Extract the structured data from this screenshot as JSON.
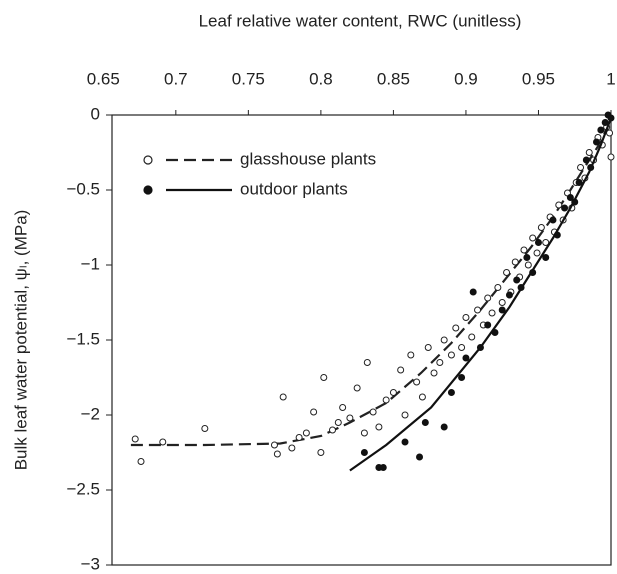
{
  "chart_data": {
    "type": "scatter",
    "xlabel": "Leaf relative water content, RWC (unitless)",
    "ylabel": "Bulk leaf water potential, ψₗ, (MPa)",
    "xlim": [
      0.656,
      1.0
    ],
    "xticks": [
      0.65,
      0.7,
      0.75,
      0.8,
      0.85,
      0.9,
      0.95,
      1
    ],
    "ylim": [
      -3,
      0
    ],
    "yticks": [
      0,
      {
        "value": -0.5,
        "label": "−0.5"
      },
      {
        "value": -1,
        "label": "−1"
      },
      {
        "value": -1.5,
        "label": "−1.5"
      },
      {
        "value": -2,
        "label": "−2"
      },
      {
        "value": -2.5,
        "label": "−2.5"
      },
      {
        "value": -3,
        "label": "−3"
      }
    ],
    "x_axis_position": "top",
    "legend": "upper left",
    "series": [
      {
        "name": "glasshouse plants",
        "color": "#222222",
        "marker": "open",
        "line": "dashed",
        "x": [
          0.672,
          0.676,
          0.691,
          0.72,
          0.768,
          0.77,
          0.774,
          0.78,
          0.785,
          0.79,
          0.795,
          0.8,
          0.802,
          0.808,
          0.812,
          0.815,
          0.82,
          0.825,
          0.83,
          0.832,
          0.836,
          0.84,
          0.845,
          0.85,
          0.855,
          0.858,
          0.862,
          0.866,
          0.87,
          0.874,
          0.878,
          0.882,
          0.885,
          0.89,
          0.893,
          0.897,
          0.9,
          0.904,
          0.908,
          0.912,
          0.915,
          0.918,
          0.922,
          0.925,
          0.928,
          0.931,
          0.934,
          0.937,
          0.94,
          0.943,
          0.946,
          0.949,
          0.952,
          0.955,
          0.958,
          0.961,
          0.964,
          0.967,
          0.97,
          0.973,
          0.976,
          0.979,
          0.982,
          0.985,
          0.988,
          0.991,
          0.994,
          0.997,
          1.0,
          0.999
        ],
        "values": [
          -2.16,
          -2.31,
          -2.18,
          -2.09,
          -2.2,
          -2.26,
          -1.88,
          -2.22,
          -2.15,
          -2.12,
          -1.98,
          -2.25,
          -1.75,
          -2.1,
          -2.05,
          -1.95,
          -2.02,
          -1.82,
          -2.12,
          -1.65,
          -1.98,
          -2.08,
          -1.9,
          -1.85,
          -1.7,
          -2.0,
          -1.6,
          -1.78,
          -1.88,
          -1.55,
          -1.72,
          -1.65,
          -1.5,
          -1.6,
          -1.42,
          -1.55,
          -1.35,
          -1.48,
          -1.3,
          -1.4,
          -1.22,
          -1.32,
          -1.15,
          -1.25,
          -1.05,
          -1.18,
          -0.98,
          -1.08,
          -0.9,
          -1.0,
          -0.82,
          -0.92,
          -0.75,
          -0.85,
          -0.68,
          -0.78,
          -0.6,
          -0.7,
          -0.52,
          -0.62,
          -0.45,
          -0.35,
          -0.42,
          -0.25,
          -0.3,
          -0.15,
          -0.2,
          -0.08,
          -0.28,
          -0.12
        ],
        "fit_x": [
          0.669,
          0.72,
          0.772,
          0.8,
          0.82,
          0.845,
          0.869,
          0.89,
          0.91,
          0.93,
          0.945,
          0.96,
          0.972,
          0.985,
          0.993,
          1.0
        ],
        "fit_y": [
          -2.2,
          -2.2,
          -2.19,
          -2.14,
          -2.05,
          -1.92,
          -1.72,
          -1.52,
          -1.3,
          -1.06,
          -0.88,
          -0.68,
          -0.5,
          -0.3,
          -0.18,
          -0.02
        ]
      },
      {
        "name": "outdoor plants",
        "color": "#111111",
        "marker": "filled",
        "line": "solid",
        "x": [
          0.83,
          0.84,
          0.843,
          0.858,
          0.868,
          0.872,
          0.885,
          0.89,
          0.897,
          0.9,
          0.905,
          0.91,
          0.915,
          0.92,
          0.925,
          0.93,
          0.935,
          0.938,
          0.942,
          0.946,
          0.95,
          0.955,
          0.96,
          0.963,
          0.968,
          0.972,
          0.975,
          0.978,
          0.983,
          0.986,
          0.99,
          0.993,
          0.996,
          0.998,
          1.0
        ],
        "values": [
          -2.25,
          -2.35,
          -2.35,
          -2.18,
          -2.28,
          -2.05,
          -2.08,
          -1.85,
          -1.75,
          -1.62,
          -1.18,
          -1.55,
          -1.4,
          -1.45,
          -1.3,
          -1.2,
          -1.1,
          -1.15,
          -0.95,
          -1.05,
          -0.85,
          -0.95,
          -0.7,
          -0.8,
          -0.62,
          -0.55,
          -0.58,
          -0.45,
          -0.3,
          -0.35,
          -0.18,
          -0.1,
          -0.05,
          0.0,
          -0.02
        ],
        "fit_x": [
          0.82,
          0.845,
          0.876,
          0.91,
          0.93,
          0.945,
          0.96,
          0.972,
          0.985,
          0.993,
          1.0
        ],
        "fit_y": [
          -2.37,
          -2.2,
          -1.95,
          -1.55,
          -1.28,
          -1.05,
          -0.82,
          -0.62,
          -0.38,
          -0.2,
          -0.02
        ]
      }
    ]
  }
}
